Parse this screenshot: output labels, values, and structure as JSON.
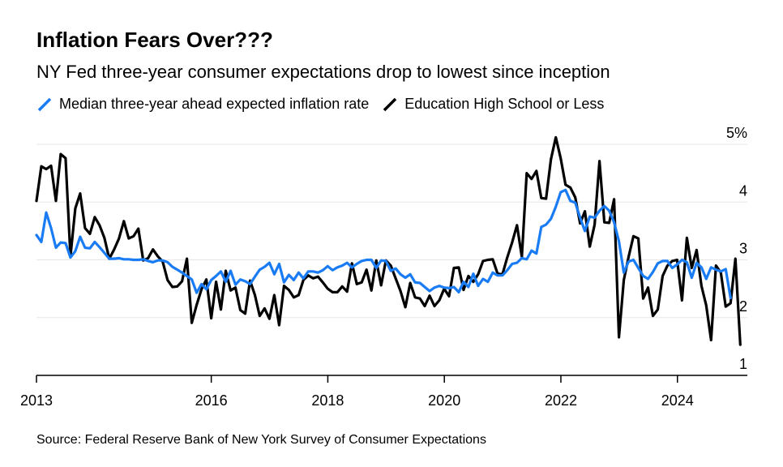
{
  "colors": {
    "series_blue": "#1a7cf5",
    "series_black": "#000000",
    "grid": "#e6e6e6",
    "axis": "#000000"
  },
  "chart_data": {
    "type": "line",
    "title": "Inflation Fears Over???",
    "subtitle": "NY Fed three-year consumer expectations drop to lowest since inception",
    "source": "Source: Federal Reserve Bank of New York Survey of Consumer Expectations",
    "xlabel": "",
    "ylabel": "",
    "xlim": [
      2013.0,
      2025.2
    ],
    "ylim": [
      1,
      5
    ],
    "x_ticks": [
      {
        "value": 2013,
        "label": "2013"
      },
      {
        "value": 2016,
        "label": "2016"
      },
      {
        "value": 2018,
        "label": "2018"
      },
      {
        "value": 2020,
        "label": "2020"
      },
      {
        "value": 2022,
        "label": "2022"
      },
      {
        "value": 2024,
        "label": "2024"
      }
    ],
    "y_ticks": [
      {
        "value": 5,
        "label": "5%"
      },
      {
        "value": 4,
        "label": "4"
      },
      {
        "value": 3,
        "label": "3"
      },
      {
        "value": 2,
        "label": "2"
      },
      {
        "value": 1,
        "label": "1"
      }
    ],
    "x_start": 2013.0,
    "x_step": 0.0833,
    "series": [
      {
        "name": "Median three-year ahead expected inflation rate",
        "color": "#1a7cf5",
        "values": [
          3.43,
          3.31,
          3.82,
          3.55,
          3.21,
          3.3,
          3.29,
          3.04,
          3.15,
          3.4,
          3.21,
          3.2,
          3.31,
          3.22,
          3.12,
          3.02,
          3.02,
          3.03,
          3.01,
          3.01,
          3.0,
          3.0,
          3.01,
          2.98,
          2.96,
          2.99,
          2.99,
          2.96,
          2.88,
          2.83,
          2.78,
          2.72,
          2.66,
          2.43,
          2.58,
          2.49,
          2.65,
          2.72,
          2.8,
          2.62,
          2.81,
          2.57,
          2.66,
          2.63,
          2.58,
          2.71,
          2.83,
          2.88,
          2.95,
          2.75,
          2.93,
          2.61,
          2.74,
          2.65,
          2.78,
          2.68,
          2.8,
          2.8,
          2.78,
          2.82,
          2.89,
          2.82,
          2.87,
          2.9,
          2.95,
          2.87,
          2.93,
          2.98,
          3.0,
          3.0,
          2.86,
          2.99,
          2.98,
          2.81,
          2.85,
          2.75,
          2.69,
          2.75,
          2.61,
          2.6,
          2.53,
          2.46,
          2.52,
          2.55,
          2.52,
          2.51,
          2.53,
          2.44,
          2.62,
          2.53,
          2.76,
          2.55,
          2.67,
          2.62,
          2.78,
          2.73,
          2.73,
          2.82,
          2.93,
          2.95,
          3.03,
          3.01,
          3.16,
          3.11,
          3.57,
          3.61,
          3.71,
          3.92,
          4.17,
          4.21,
          4.02,
          3.99,
          3.73,
          3.5,
          3.75,
          3.73,
          3.85,
          3.93,
          3.85,
          3.65,
          3.32,
          2.78,
          2.97,
          3.0,
          2.86,
          2.72,
          2.67,
          2.79,
          2.94,
          2.98,
          2.98,
          2.86,
          2.92,
          3.0,
          2.96,
          2.69,
          2.95,
          2.87,
          2.67,
          2.87,
          2.83,
          2.8,
          2.84,
          2.34
        ]
      },
      {
        "name": "Education High School or Less",
        "color": "#000000",
        "values": [
          4.02,
          4.62,
          4.57,
          4.63,
          4.02,
          4.83,
          4.76,
          3.06,
          3.89,
          4.15,
          3.55,
          3.45,
          3.74,
          3.6,
          3.38,
          3.02,
          3.18,
          3.37,
          3.67,
          3.37,
          3.41,
          3.54,
          2.99,
          3.03,
          3.18,
          3.06,
          2.97,
          2.65,
          2.53,
          2.54,
          2.63,
          3.02,
          1.91,
          2.22,
          2.49,
          2.66,
          1.99,
          2.62,
          2.14,
          2.81,
          2.47,
          2.52,
          2.13,
          2.07,
          2.64,
          2.39,
          2.03,
          2.16,
          1.98,
          2.39,
          1.87,
          2.55,
          2.48,
          2.35,
          2.39,
          2.65,
          2.73,
          2.68,
          2.71,
          2.61,
          2.5,
          2.44,
          2.44,
          2.54,
          2.45,
          2.94,
          2.58,
          2.61,
          2.83,
          2.47,
          2.99,
          2.56,
          2.99,
          2.9,
          2.68,
          2.46,
          2.18,
          2.6,
          2.35,
          2.33,
          2.2,
          2.38,
          2.2,
          2.3,
          2.5,
          2.37,
          2.86,
          2.87,
          2.48,
          2.72,
          2.62,
          2.75,
          2.98,
          3.0,
          3.01,
          2.76,
          2.75,
          3.04,
          3.3,
          3.6,
          3.05,
          4.5,
          4.4,
          4.54,
          4.07,
          4.06,
          4.74,
          5.12,
          4.76,
          4.3,
          4.25,
          4.08,
          3.63,
          3.84,
          3.23,
          3.61,
          4.71,
          3.65,
          3.64,
          4.05,
          1.66,
          2.65,
          3.05,
          3.41,
          3.37,
          2.33,
          2.52,
          2.03,
          2.14,
          2.72,
          2.9,
          2.98,
          3.0,
          2.3,
          3.38,
          2.86,
          3.17,
          2.55,
          2.21,
          1.61,
          2.9,
          2.78,
          2.19,
          2.25,
          3.02,
          1.53
        ]
      }
    ]
  }
}
